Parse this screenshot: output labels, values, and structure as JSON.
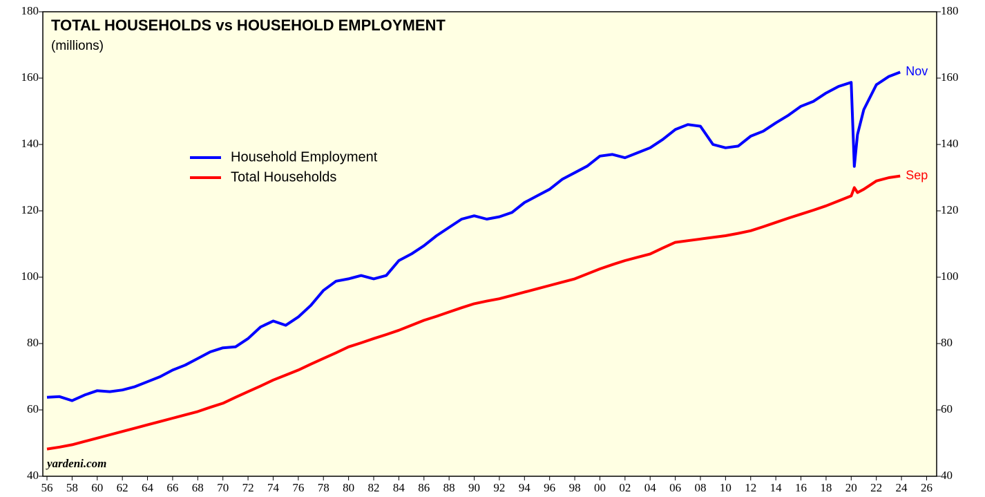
{
  "chart_data": {
    "type": "line",
    "title": "TOTAL HOUSEHOLDS vs HOUSEHOLD EMPLOYMENT",
    "subtitle": "(millions)",
    "source": "yardeni.com",
    "x": [
      1956,
      1957,
      1958,
      1959,
      1960,
      1961,
      1962,
      1963,
      1964,
      1965,
      1966,
      1967,
      1968,
      1969,
      1970,
      1971,
      1972,
      1973,
      1974,
      1975,
      1976,
      1977,
      1978,
      1979,
      1980,
      1981,
      1982,
      1983,
      1984,
      1985,
      1986,
      1987,
      1988,
      1989,
      1990,
      1991,
      1992,
      1993,
      1994,
      1995,
      1996,
      1997,
      1998,
      1999,
      2000,
      2001,
      2002,
      2003,
      2004,
      2005,
      2006,
      2007,
      2008,
      2009,
      2010,
      2011,
      2012,
      2013,
      2014,
      2015,
      2016,
      2017,
      2018,
      2019,
      2020,
      2020.25,
      2020.5,
      2021,
      2022,
      2023,
      2023.9
    ],
    "series": [
      {
        "name": "Household Employment",
        "color": "#0000ff",
        "end_label": "Nov",
        "values": [
          63.8,
          64,
          62.8,
          64.5,
          65.8,
          65.5,
          66,
          67,
          68.5,
          70,
          72,
          73.5,
          75.5,
          77.5,
          78.7,
          79,
          81.5,
          85,
          86.8,
          85.5,
          88,
          91.5,
          96,
          98.8,
          99.5,
          100.5,
          99.5,
          100.5,
          105,
          107,
          109.5,
          112.5,
          115,
          117.5,
          118.5,
          117.5,
          118.2,
          119.5,
          122.5,
          124.5,
          126.5,
          129.5,
          131.5,
          133.5,
          136.5,
          137,
          136,
          137.5,
          139,
          141.5,
          144.5,
          146,
          145.5,
          140,
          139,
          139.5,
          142.5,
          144,
          146.5,
          148.8,
          151.5,
          153,
          155.5,
          157.5,
          158.7,
          133.4,
          143,
          150.5,
          158,
          160.5,
          161.8
        ]
      },
      {
        "name": "Total Households",
        "color": "#ff0000",
        "end_label": "Sep",
        "values": [
          48.2,
          48.8,
          49.5,
          50.5,
          51.5,
          52.5,
          53.5,
          54.5,
          55.5,
          56.5,
          57.5,
          58.5,
          59.5,
          60.8,
          62,
          63.8,
          65.5,
          67.2,
          69,
          70.5,
          72,
          73.8,
          75.5,
          77.2,
          79,
          80.2,
          81.5,
          82.7,
          84,
          85.5,
          87,
          88.2,
          89.5,
          90.8,
          92,
          92.8,
          93.5,
          94.5,
          95.5,
          96.5,
          97.5,
          98.5,
          99.5,
          101,
          102.5,
          103.8,
          105,
          106,
          107,
          108.8,
          110.5,
          111,
          111.5,
          112,
          112.5,
          113.2,
          114,
          115.2,
          116.5,
          117.8,
          119,
          120.2,
          121.5,
          123,
          124.5,
          127,
          125.5,
          126.5,
          129,
          130,
          130.5
        ]
      }
    ],
    "xlim": [
      1955.67,
      2026.8
    ],
    "xticks": [
      {
        "value": 1956,
        "label": "56"
      },
      {
        "value": 1958,
        "label": "58"
      },
      {
        "value": 1960,
        "label": "60"
      },
      {
        "value": 1962,
        "label": "62"
      },
      {
        "value": 1964,
        "label": "64"
      },
      {
        "value": 1966,
        "label": "66"
      },
      {
        "value": 1968,
        "label": "68"
      },
      {
        "value": 1970,
        "label": "70"
      },
      {
        "value": 1972,
        "label": "72"
      },
      {
        "value": 1974,
        "label": "74"
      },
      {
        "value": 1976,
        "label": "76"
      },
      {
        "value": 1978,
        "label": "78"
      },
      {
        "value": 1980,
        "label": "80"
      },
      {
        "value": 1982,
        "label": "82"
      },
      {
        "value": 1984,
        "label": "84"
      },
      {
        "value": 1986,
        "label": "86"
      },
      {
        "value": 1988,
        "label": "88"
      },
      {
        "value": 1990,
        "label": "90"
      },
      {
        "value": 1992,
        "label": "92"
      },
      {
        "value": 1994,
        "label": "94"
      },
      {
        "value": 1996,
        "label": "96"
      },
      {
        "value": 1998,
        "label": "98"
      },
      {
        "value": 2000,
        "label": "00"
      },
      {
        "value": 2002,
        "label": "02"
      },
      {
        "value": 2004,
        "label": "04"
      },
      {
        "value": 2006,
        "label": "06"
      },
      {
        "value": 2008,
        "label": "08"
      },
      {
        "value": 2010,
        "label": "10"
      },
      {
        "value": 2012,
        "label": "12"
      },
      {
        "value": 2014,
        "label": "14"
      },
      {
        "value": 2016,
        "label": "16"
      },
      {
        "value": 2018,
        "label": "18"
      },
      {
        "value": 2020,
        "label": "20"
      },
      {
        "value": 2022,
        "label": "22"
      },
      {
        "value": 2024,
        "label": "24"
      },
      {
        "value": 2026,
        "label": "26"
      }
    ],
    "ylim": [
      40,
      180
    ],
    "yticks": [
      40,
      60,
      80,
      100,
      120,
      140,
      160,
      180
    ],
    "y2lim": [
      40,
      180
    ],
    "y2ticks": [
      40,
      60,
      80,
      100,
      120,
      140,
      160,
      180
    ],
    "legend": "upper left"
  }
}
